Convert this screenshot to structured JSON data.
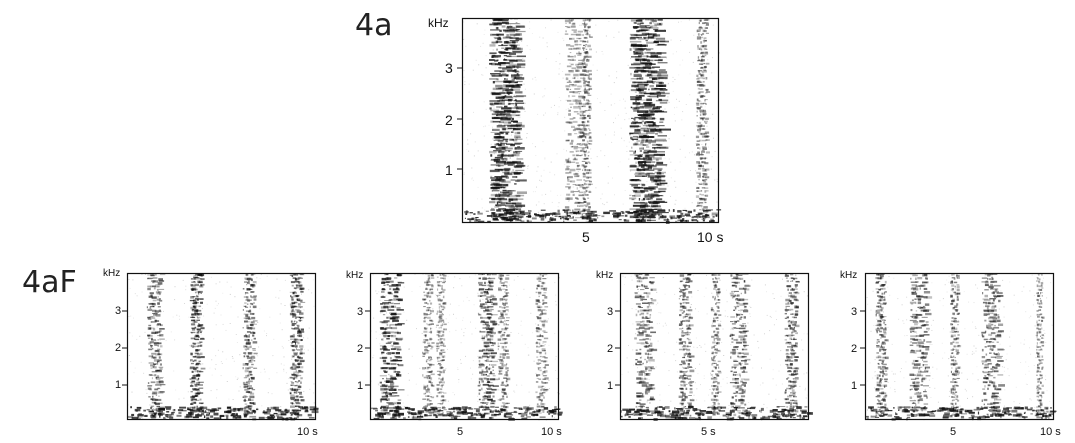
{
  "figure": {
    "labels": {
      "main": "4a",
      "variants": "4aF"
    },
    "panels": [
      {
        "id": "4a",
        "y_unit": "kHz",
        "y_ticks": [
          "3",
          "2",
          "1"
        ],
        "x_ticks": [
          "5",
          "10 s"
        ],
        "bands": [
          {
            "center": 0.16,
            "width": 0.11,
            "density": 0.85
          },
          {
            "center": 0.43,
            "width": 0.06,
            "density": 0.25
          },
          {
            "center": 0.48,
            "width": 0.03,
            "density": 0.3
          },
          {
            "center": 0.71,
            "width": 0.12,
            "density": 0.9
          },
          {
            "center": 0.93,
            "width": 0.04,
            "density": 0.35
          }
        ]
      },
      {
        "id": "4aF-1",
        "y_unit": "kHz",
        "y_ticks": [
          "3",
          "2",
          "1"
        ],
        "x_ticks": [
          "10 s"
        ],
        "bands": [
          {
            "center": 0.14,
            "width": 0.07,
            "density": 0.6
          },
          {
            "center": 0.36,
            "width": 0.06,
            "density": 0.75
          },
          {
            "center": 0.64,
            "width": 0.06,
            "density": 0.55
          },
          {
            "center": 0.89,
            "width": 0.06,
            "density": 0.7
          }
        ]
      },
      {
        "id": "4aF-2",
        "y_unit": "kHz",
        "y_ticks": [
          "3",
          "2",
          "1"
        ],
        "x_ticks": [
          "5",
          "10 s"
        ],
        "bands": [
          {
            "center": 0.1,
            "width": 0.1,
            "density": 0.85
          },
          {
            "center": 0.3,
            "width": 0.05,
            "density": 0.35
          },
          {
            "center": 0.37,
            "width": 0.04,
            "density": 0.3
          },
          {
            "center": 0.61,
            "width": 0.08,
            "density": 0.7
          },
          {
            "center": 0.7,
            "width": 0.05,
            "density": 0.4
          },
          {
            "center": 0.9,
            "width": 0.05,
            "density": 0.35
          }
        ]
      },
      {
        "id": "4aF-3",
        "y_unit": "kHz",
        "y_ticks": [
          "3",
          "2",
          "1"
        ],
        "x_ticks": [
          "5 s"
        ],
        "bands": [
          {
            "center": 0.12,
            "width": 0.09,
            "density": 0.55
          },
          {
            "center": 0.34,
            "width": 0.06,
            "density": 0.5
          },
          {
            "center": 0.5,
            "width": 0.04,
            "density": 0.3
          },
          {
            "center": 0.62,
            "width": 0.08,
            "density": 0.55
          },
          {
            "center": 0.9,
            "width": 0.06,
            "density": 0.6
          }
        ]
      },
      {
        "id": "4aF-4",
        "y_unit": "kHz",
        "y_ticks": [
          "3",
          "2",
          "1"
        ],
        "x_ticks": [
          "5",
          "10 s"
        ],
        "bands": [
          {
            "center": 0.08,
            "width": 0.05,
            "density": 0.5
          },
          {
            "center": 0.28,
            "width": 0.09,
            "density": 0.5
          },
          {
            "center": 0.47,
            "width": 0.04,
            "density": 0.45
          },
          {
            "center": 0.66,
            "width": 0.09,
            "density": 0.55
          },
          {
            "center": 0.92,
            "width": 0.03,
            "density": 0.3
          }
        ]
      }
    ]
  }
}
